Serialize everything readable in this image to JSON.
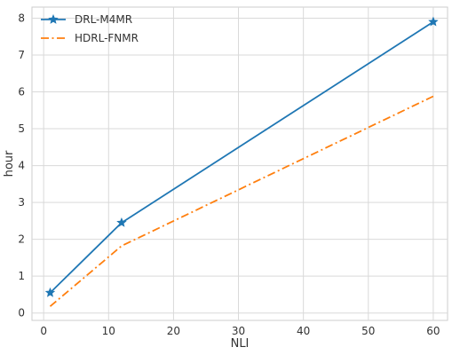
{
  "chart_data": {
    "type": "line",
    "xlabel": "NLI",
    "ylabel": "hour",
    "xlim": [
      -1.8,
      62.2
    ],
    "ylim": [
      -0.2,
      8.3
    ],
    "xticks": [
      0,
      10,
      20,
      30,
      40,
      50,
      60
    ],
    "yticks": [
      0,
      1,
      2,
      3,
      4,
      5,
      6,
      7,
      8
    ],
    "grid": true,
    "legend_position": "top-left",
    "series": [
      {
        "name": "DRL-M4MR",
        "x": [
          1,
          12,
          60
        ],
        "y": [
          0.55,
          2.45,
          7.9
        ],
        "color": "#1f77b4",
        "linestyle": "solid",
        "marker": "star"
      },
      {
        "name": "HDRL-FNMR",
        "x": [
          1,
          12,
          60
        ],
        "y": [
          0.18,
          1.82,
          5.88
        ],
        "color": "#ff7f0e",
        "linestyle": "dashdot",
        "marker": "none"
      }
    ]
  }
}
